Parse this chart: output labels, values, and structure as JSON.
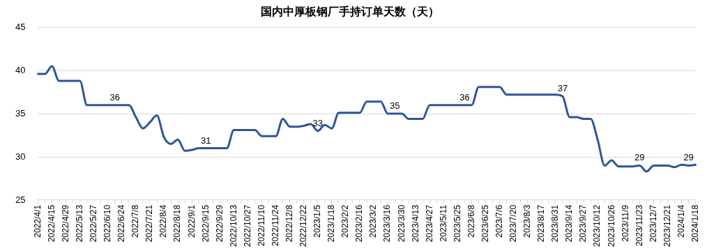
{
  "chart_data": {
    "type": "line",
    "title": "国内中厚板钢厂手持订单天数（天）",
    "categories": [
      "2022/4/1",
      null,
      "2022/4/15",
      null,
      "2022/4/29",
      null,
      "2022/5/13",
      null,
      "2022/5/27",
      null,
      "2022/6/10",
      null,
      "2022/6/24",
      null,
      "2022/7/8",
      null,
      "2022/7/21",
      null,
      "2022/8/4",
      null,
      "2022/8/18",
      null,
      "2022/9/1",
      null,
      "2022/9/15",
      null,
      "2022/9/29",
      null,
      "2022/10/13",
      null,
      "2022/10/27",
      null,
      "2022/11/10",
      null,
      "2022/11/24",
      null,
      "2022/12/8",
      null,
      "2022/12/22",
      null,
      "2023/1/5",
      null,
      "2023/1/18",
      null,
      "2023/2/2",
      null,
      "2023/2/16",
      null,
      "2023/3/2",
      null,
      "2023/3/16",
      null,
      "2023/3/30",
      null,
      "2023/4/13",
      null,
      "2023/4/27",
      null,
      "2023/5/11",
      null,
      "2023/5/25",
      null,
      "2023/6/8",
      null,
      "2023/6/25",
      null,
      "2023/7/6",
      null,
      "2023/7/20",
      null,
      "2023/8/3",
      null,
      "2023/8/17",
      null,
      "2023/8/31",
      null,
      "2023/9/14",
      null,
      "2023/9/27",
      null,
      "2023/10/12",
      null,
      "2023/10/26",
      null,
      "2023/11/9",
      null,
      "2023/11/23",
      null,
      "2023/12/7",
      null,
      "2023/12/21",
      null,
      "2024/1/4",
      null,
      "2024/1/18"
    ],
    "series": [
      {
        "color": "#2f5597",
        "values": [
          39.6,
          39.6,
          40.5,
          38.8,
          38.8,
          38.8,
          38.8,
          36,
          36,
          36,
          36,
          36,
          36,
          36,
          34.6,
          33.3,
          34.0,
          34.8,
          32.3,
          31.5,
          32.0,
          30.7,
          30.8,
          31,
          31,
          31,
          31,
          31,
          33.1,
          33.1,
          33.1,
          33.1,
          32.4,
          32.4,
          32.4,
          34.4,
          33.5,
          33.5,
          33.6,
          33.8,
          33,
          33.7,
          33.3,
          35.1,
          35.1,
          35.1,
          35.1,
          36.4,
          36.4,
          36.4,
          35,
          35,
          35,
          34.4,
          34.4,
          34.4,
          36,
          36,
          36,
          36,
          36,
          36,
          36,
          38.1,
          38.1,
          38.1,
          38.1,
          37.2,
          37.2,
          37.2,
          37.2,
          37.2,
          37.2,
          37.2,
          37.2,
          37,
          34.6,
          34.6,
          34.4,
          34.4,
          32.0,
          29.0,
          29.6,
          28.9,
          28.9,
          28.9,
          29,
          28.3,
          29.0,
          29.0,
          29.0,
          28.8,
          29.1,
          29,
          29.1
        ],
        "value_labels": [
          null,
          null,
          null,
          null,
          null,
          null,
          null,
          null,
          null,
          null,
          null,
          "36",
          null,
          null,
          null,
          null,
          null,
          null,
          null,
          null,
          null,
          null,
          null,
          null,
          "31",
          null,
          null,
          null,
          null,
          null,
          null,
          null,
          null,
          null,
          null,
          null,
          null,
          null,
          null,
          null,
          "33",
          null,
          null,
          null,
          null,
          null,
          null,
          null,
          null,
          null,
          null,
          "35",
          null,
          null,
          null,
          null,
          null,
          null,
          null,
          null,
          null,
          "36",
          null,
          null,
          null,
          null,
          null,
          null,
          null,
          null,
          null,
          null,
          null,
          null,
          null,
          "37",
          null,
          null,
          null,
          null,
          null,
          null,
          null,
          null,
          null,
          null,
          "29",
          null,
          null,
          null,
          null,
          null,
          null,
          "29",
          null
        ]
      }
    ],
    "ylim": [
      25,
      45
    ],
    "yticks": [
      25,
      30,
      35,
      40,
      45
    ],
    "grid": "y",
    "legend": false,
    "marker": "none",
    "line_style": "solid"
  }
}
